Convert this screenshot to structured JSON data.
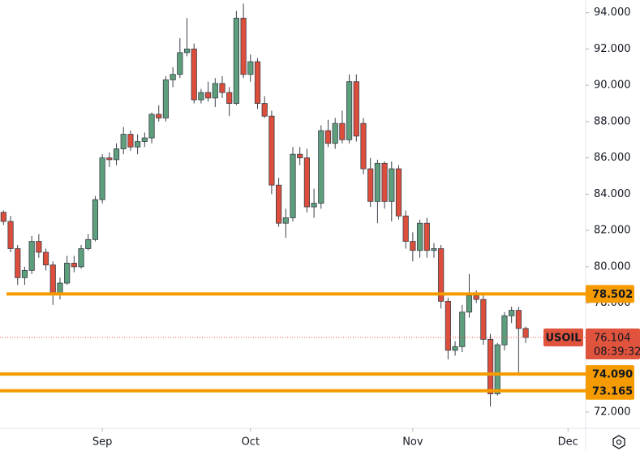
{
  "chart_data": {
    "type": "candlestick",
    "symbol": "USOIL",
    "countdown": "08:39:32",
    "last_price": 76.104,
    "last_price_color": "#e0533d",
    "up_color": "#5d9e7c",
    "down_color": "#dc4e3b",
    "level_color": "#f59b00",
    "levels": [
      78.502,
      {
        "value": 74.09,
        "label": "74.090"
      },
      73.165
    ],
    "open": [
      83.0,
      82.5,
      81.0,
      79.4,
      79.8,
      81.4,
      80.8,
      80.1,
      78.5,
      79.1,
      80.2,
      80.0,
      81.0,
      81.5,
      83.7,
      86.0,
      85.9,
      86.5,
      87.3,
      86.6,
      86.9,
      87.1,
      88.4,
      88.2,
      90.3,
      90.6,
      91.8,
      92.0,
      89.2,
      89.6,
      89.3,
      90.1,
      89.6,
      89.0,
      93.7,
      90.6,
      91.3,
      89.0,
      88.3,
      84.5,
      82.4,
      82.7,
      86.2,
      86.0,
      83.3,
      83.5,
      87.5,
      86.8,
      87.9,
      87.0,
      90.2,
      87.9,
      85.4,
      83.6,
      85.7,
      83.6,
      85.4,
      82.8,
      81.4,
      80.9,
      82.4,
      80.9,
      81.0,
      78.1,
      75.4,
      75.6,
      77.5,
      78.4,
      78.2,
      76.0,
      73.0,
      75.7,
      77.3,
      77.6,
      76.6
    ],
    "high": [
      83.1,
      82.8,
      81.2,
      80.0,
      81.7,
      81.8,
      81.0,
      80.3,
      79.4,
      80.6,
      80.6,
      81.2,
      81.8,
      83.9,
      86.2,
      86.3,
      86.8,
      87.7,
      87.5,
      87.3,
      87.4,
      88.5,
      88.9,
      90.5,
      91.0,
      92.6,
      93.7,
      92.3,
      89.8,
      90.2,
      90.4,
      90.5,
      89.9,
      94.1,
      94.5,
      91.7,
      91.5,
      89.4,
      88.6,
      84.9,
      83.2,
      86.6,
      86.6,
      86.5,
      84.3,
      87.8,
      88.1,
      88.2,
      88.6,
      90.6,
      90.6,
      88.2,
      86.0,
      85.9,
      85.8,
      85.8,
      85.6,
      83.1,
      81.9,
      82.6,
      82.7,
      81.3,
      81.2,
      78.3,
      75.9,
      77.9,
      79.6,
      78.7,
      78.5,
      76.3,
      75.8,
      77.5,
      77.8,
      77.8,
      76.7
    ],
    "low": [
      82.3,
      80.8,
      79.0,
      79.0,
      79.6,
      80.5,
      79.8,
      77.9,
      78.2,
      79.0,
      79.7,
      79.9,
      80.9,
      81.4,
      83.5,
      85.5,
      85.6,
      86.2,
      86.4,
      86.2,
      86.6,
      86.8,
      88.0,
      88.0,
      89.9,
      90.4,
      91.6,
      89.0,
      89.0,
      89.1,
      88.8,
      89.3,
      88.3,
      88.9,
      90.4,
      90.2,
      88.7,
      88.2,
      84.0,
      82.2,
      81.6,
      82.5,
      85.6,
      83.0,
      82.7,
      83.2,
      86.6,
      86.5,
      86.8,
      86.8,
      86.9,
      85.1,
      83.3,
      82.4,
      83.2,
      82.5,
      82.6,
      81.0,
      80.3,
      80.5,
      80.5,
      80.5,
      77.7,
      74.9,
      75.1,
      75.3,
      77.2,
      78.0,
      75.7,
      72.3,
      72.9,
      75.4,
      76.9,
      74.0,
      75.8
    ],
    "close": [
      82.5,
      81.0,
      79.4,
      79.8,
      81.4,
      80.8,
      80.1,
      78.5,
      79.1,
      80.2,
      80.0,
      81.0,
      81.5,
      83.7,
      86.0,
      85.9,
      86.5,
      87.3,
      86.6,
      86.9,
      87.1,
      88.4,
      88.2,
      90.3,
      90.6,
      91.8,
      92.0,
      89.2,
      89.6,
      89.3,
      90.1,
      89.6,
      89.0,
      93.7,
      90.6,
      91.3,
      89.0,
      88.3,
      84.5,
      82.4,
      82.7,
      86.2,
      86.0,
      83.3,
      83.5,
      87.5,
      86.8,
      87.9,
      87.0,
      90.2,
      87.2,
      85.4,
      83.6,
      85.7,
      83.6,
      85.4,
      82.8,
      81.4,
      80.9,
      82.4,
      80.9,
      81.0,
      78.1,
      75.4,
      75.6,
      77.5,
      78.4,
      78.2,
      76.0,
      73.0,
      75.7,
      77.3,
      77.6,
      76.6,
      76.104
    ],
    "xlim": [
      -0.5,
      82.5
    ],
    "xticks": [
      {
        "value": 14,
        "label": "Sep"
      },
      {
        "value": 35,
        "label": "Oct"
      },
      {
        "value": 58,
        "label": "Nov"
      },
      {
        "value": 80,
        "label": "Dec"
      }
    ],
    "ylim": [
      71.1,
      94.7
    ],
    "yticks": [
      {
        "value": 72,
        "label": "72.000"
      },
      {
        "value": 74,
        "label": "74.000"
      },
      {
        "value": 76,
        "label": "76.000"
      },
      {
        "value": 78,
        "label": "78.000"
      },
      {
        "value": 80,
        "label": "80.000"
      },
      {
        "value": 82,
        "label": "82.000"
      },
      {
        "value": 84,
        "label": "84.000"
      },
      {
        "value": 86,
        "label": "86.000"
      },
      {
        "value": 88,
        "label": "88.000"
      },
      {
        "value": 90,
        "label": "90.000"
      },
      {
        "value": 92,
        "label": "92.000"
      },
      {
        "value": 94,
        "label": "94.000"
      }
    ]
  }
}
